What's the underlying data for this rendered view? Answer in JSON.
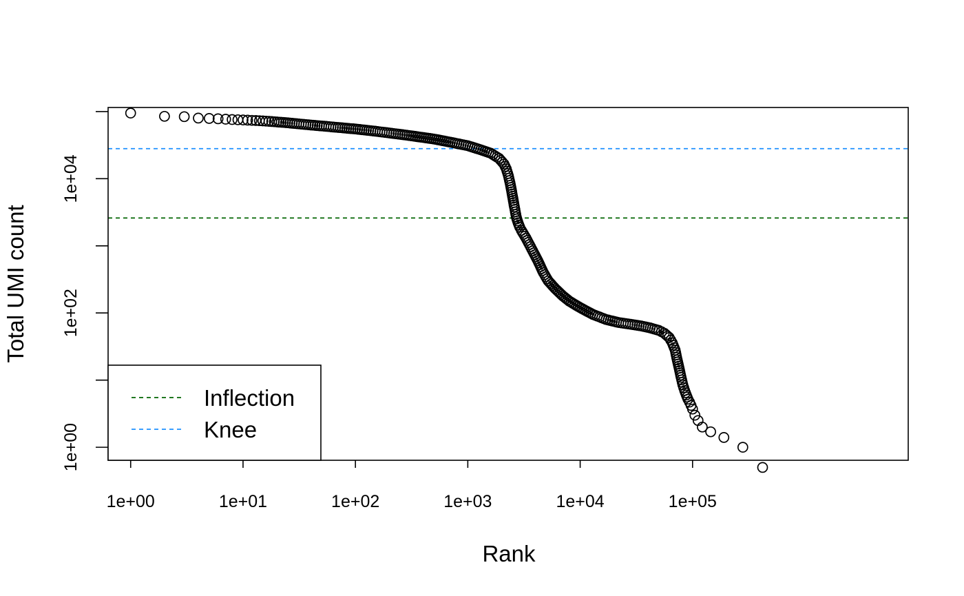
{
  "chart_data": {
    "type": "scatter",
    "xlabel": "Rank",
    "ylabel": "Total UMI count",
    "x_scale": "log",
    "y_scale": "log",
    "xlim": [
      0.63,
      8300000
    ],
    "ylim": [
      0.64,
      115000
    ],
    "x_ticks": [
      1,
      10,
      100,
      1000,
      10000,
      100000
    ],
    "x_tick_labels": [
      "1e+00",
      "1e+01",
      "1e+02",
      "1e+03",
      "1e+04",
      "1e+05"
    ],
    "y_ticks": [
      1,
      10,
      100,
      1000,
      10000,
      100000
    ],
    "y_tick_labels": [
      "1e+00",
      "",
      "1e+02",
      "",
      "1e+04",
      ""
    ],
    "grid": false,
    "marker": "open-circle",
    "series": [
      {
        "x": [
          1,
          2,
          3,
          4,
          5,
          6,
          7,
          8,
          9,
          10,
          11,
          12,
          13,
          14,
          15,
          16,
          17,
          18,
          20,
          25,
          30,
          40,
          50,
          70,
          100,
          150,
          200,
          300,
          500,
          700,
          1000,
          1300,
          1600,
          1900,
          2100,
          2200,
          2300,
          2400,
          2500,
          2600,
          2700,
          2800,
          2900,
          3000,
          3300,
          3700,
          4200,
          4700,
          5200,
          6000,
          7000,
          8000,
          10000,
          13000,
          17000,
          22000,
          28000,
          35000,
          42000,
          50000,
          56000,
          62000,
          66000,
          70000,
          73000,
          76000,
          79000,
          82000,
          85000,
          88000,
          91000,
          94000,
          97000,
          100000,
          105000,
          112000,
          122000,
          145000,
          190000,
          280000,
          420000
        ],
        "y": [
          95000,
          85000,
          84000,
          80000,
          79000,
          78000,
          77000,
          76000,
          75500,
          75000,
          74500,
          74000,
          73500,
          73000,
          72500,
          72000,
          71500,
          71000,
          70000,
          68000,
          66000,
          63000,
          61000,
          58000,
          55000,
          51000,
          48000,
          44000,
          39000,
          35000,
          31000,
          27000,
          24000,
          20000,
          16500,
          14000,
          11000,
          8000,
          5500,
          3800,
          2700,
          2200,
          1900,
          1700,
          1300,
          900,
          600,
          400,
          300,
          230,
          180,
          150,
          120,
          95,
          80,
          72,
          68,
          64,
          60,
          55,
          50,
          43,
          36,
          28,
          20,
          15,
          11,
          8.5,
          7,
          6,
          5.2,
          4.7,
          4.2,
          3.7,
          3.0,
          2.5,
          2.0,
          1.7,
          1.4,
          1.0,
          0.5
        ]
      }
    ],
    "hlines": [
      {
        "name": "Knee",
        "y": 28000,
        "color": "#1e90ff",
        "style": "dashed"
      },
      {
        "name": "Inflection",
        "y": 2600,
        "color": "#006400",
        "style": "dashed"
      }
    ],
    "legend": {
      "placement": "bottom-left",
      "entries": [
        {
          "label": "Inflection",
          "color": "#006400",
          "style": "dashed"
        },
        {
          "label": "Knee",
          "color": "#1e90ff",
          "style": "dashed"
        }
      ]
    }
  }
}
